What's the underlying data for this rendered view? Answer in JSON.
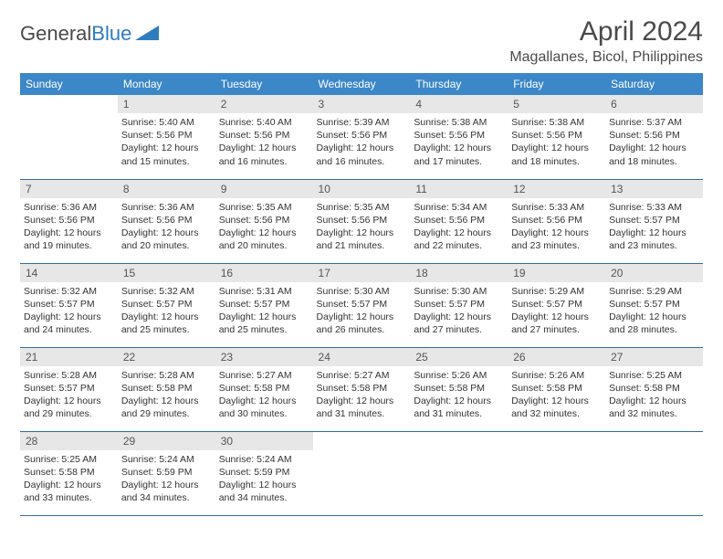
{
  "logo": {
    "text1": "General",
    "text2": "Blue",
    "shape_color": "#2e7cc0"
  },
  "title": "April 2024",
  "location": "Magallanes, Bicol, Philippines",
  "dow": [
    "Sunday",
    "Monday",
    "Tuesday",
    "Wednesday",
    "Thursday",
    "Friday",
    "Saturday"
  ],
  "colors": {
    "header_bg": "#3b87c8",
    "header_text": "#ffffff",
    "daynum_bg": "#e7e7e7",
    "row_border": "#2f6da3",
    "text": "#333333"
  },
  "typography": {
    "title_fontsize": 30,
    "location_fontsize": 16,
    "dow_fontsize": 12,
    "daynum_fontsize": 12,
    "body_fontsize": 10.5
  },
  "weeks": [
    [
      {
        "n": "",
        "empty": true
      },
      {
        "n": "1",
        "sunrise": "Sunrise: 5:40 AM",
        "sunset": "Sunset: 5:56 PM",
        "dl1": "Daylight: 12 hours",
        "dl2": "and 15 minutes."
      },
      {
        "n": "2",
        "sunrise": "Sunrise: 5:40 AM",
        "sunset": "Sunset: 5:56 PM",
        "dl1": "Daylight: 12 hours",
        "dl2": "and 16 minutes."
      },
      {
        "n": "3",
        "sunrise": "Sunrise: 5:39 AM",
        "sunset": "Sunset: 5:56 PM",
        "dl1": "Daylight: 12 hours",
        "dl2": "and 16 minutes."
      },
      {
        "n": "4",
        "sunrise": "Sunrise: 5:38 AM",
        "sunset": "Sunset: 5:56 PM",
        "dl1": "Daylight: 12 hours",
        "dl2": "and 17 minutes."
      },
      {
        "n": "5",
        "sunrise": "Sunrise: 5:38 AM",
        "sunset": "Sunset: 5:56 PM",
        "dl1": "Daylight: 12 hours",
        "dl2": "and 18 minutes."
      },
      {
        "n": "6",
        "sunrise": "Sunrise: 5:37 AM",
        "sunset": "Sunset: 5:56 PM",
        "dl1": "Daylight: 12 hours",
        "dl2": "and 18 minutes."
      }
    ],
    [
      {
        "n": "7",
        "sunrise": "Sunrise: 5:36 AM",
        "sunset": "Sunset: 5:56 PM",
        "dl1": "Daylight: 12 hours",
        "dl2": "and 19 minutes."
      },
      {
        "n": "8",
        "sunrise": "Sunrise: 5:36 AM",
        "sunset": "Sunset: 5:56 PM",
        "dl1": "Daylight: 12 hours",
        "dl2": "and 20 minutes."
      },
      {
        "n": "9",
        "sunrise": "Sunrise: 5:35 AM",
        "sunset": "Sunset: 5:56 PM",
        "dl1": "Daylight: 12 hours",
        "dl2": "and 20 minutes."
      },
      {
        "n": "10",
        "sunrise": "Sunrise: 5:35 AM",
        "sunset": "Sunset: 5:56 PM",
        "dl1": "Daylight: 12 hours",
        "dl2": "and 21 minutes."
      },
      {
        "n": "11",
        "sunrise": "Sunrise: 5:34 AM",
        "sunset": "Sunset: 5:56 PM",
        "dl1": "Daylight: 12 hours",
        "dl2": "and 22 minutes."
      },
      {
        "n": "12",
        "sunrise": "Sunrise: 5:33 AM",
        "sunset": "Sunset: 5:56 PM",
        "dl1": "Daylight: 12 hours",
        "dl2": "and 23 minutes."
      },
      {
        "n": "13",
        "sunrise": "Sunrise: 5:33 AM",
        "sunset": "Sunset: 5:57 PM",
        "dl1": "Daylight: 12 hours",
        "dl2": "and 23 minutes."
      }
    ],
    [
      {
        "n": "14",
        "sunrise": "Sunrise: 5:32 AM",
        "sunset": "Sunset: 5:57 PM",
        "dl1": "Daylight: 12 hours",
        "dl2": "and 24 minutes."
      },
      {
        "n": "15",
        "sunrise": "Sunrise: 5:32 AM",
        "sunset": "Sunset: 5:57 PM",
        "dl1": "Daylight: 12 hours",
        "dl2": "and 25 minutes."
      },
      {
        "n": "16",
        "sunrise": "Sunrise: 5:31 AM",
        "sunset": "Sunset: 5:57 PM",
        "dl1": "Daylight: 12 hours",
        "dl2": "and 25 minutes."
      },
      {
        "n": "17",
        "sunrise": "Sunrise: 5:30 AM",
        "sunset": "Sunset: 5:57 PM",
        "dl1": "Daylight: 12 hours",
        "dl2": "and 26 minutes."
      },
      {
        "n": "18",
        "sunrise": "Sunrise: 5:30 AM",
        "sunset": "Sunset: 5:57 PM",
        "dl1": "Daylight: 12 hours",
        "dl2": "and 27 minutes."
      },
      {
        "n": "19",
        "sunrise": "Sunrise: 5:29 AM",
        "sunset": "Sunset: 5:57 PM",
        "dl1": "Daylight: 12 hours",
        "dl2": "and 27 minutes."
      },
      {
        "n": "20",
        "sunrise": "Sunrise: 5:29 AM",
        "sunset": "Sunset: 5:57 PM",
        "dl1": "Daylight: 12 hours",
        "dl2": "and 28 minutes."
      }
    ],
    [
      {
        "n": "21",
        "sunrise": "Sunrise: 5:28 AM",
        "sunset": "Sunset: 5:57 PM",
        "dl1": "Daylight: 12 hours",
        "dl2": "and 29 minutes."
      },
      {
        "n": "22",
        "sunrise": "Sunrise: 5:28 AM",
        "sunset": "Sunset: 5:58 PM",
        "dl1": "Daylight: 12 hours",
        "dl2": "and 29 minutes."
      },
      {
        "n": "23",
        "sunrise": "Sunrise: 5:27 AM",
        "sunset": "Sunset: 5:58 PM",
        "dl1": "Daylight: 12 hours",
        "dl2": "and 30 minutes."
      },
      {
        "n": "24",
        "sunrise": "Sunrise: 5:27 AM",
        "sunset": "Sunset: 5:58 PM",
        "dl1": "Daylight: 12 hours",
        "dl2": "and 31 minutes."
      },
      {
        "n": "25",
        "sunrise": "Sunrise: 5:26 AM",
        "sunset": "Sunset: 5:58 PM",
        "dl1": "Daylight: 12 hours",
        "dl2": "and 31 minutes."
      },
      {
        "n": "26",
        "sunrise": "Sunrise: 5:26 AM",
        "sunset": "Sunset: 5:58 PM",
        "dl1": "Daylight: 12 hours",
        "dl2": "and 32 minutes."
      },
      {
        "n": "27",
        "sunrise": "Sunrise: 5:25 AM",
        "sunset": "Sunset: 5:58 PM",
        "dl1": "Daylight: 12 hours",
        "dl2": "and 32 minutes."
      }
    ],
    [
      {
        "n": "28",
        "sunrise": "Sunrise: 5:25 AM",
        "sunset": "Sunset: 5:58 PM",
        "dl1": "Daylight: 12 hours",
        "dl2": "and 33 minutes."
      },
      {
        "n": "29",
        "sunrise": "Sunrise: 5:24 AM",
        "sunset": "Sunset: 5:59 PM",
        "dl1": "Daylight: 12 hours",
        "dl2": "and 34 minutes."
      },
      {
        "n": "30",
        "sunrise": "Sunrise: 5:24 AM",
        "sunset": "Sunset: 5:59 PM",
        "dl1": "Daylight: 12 hours",
        "dl2": "and 34 minutes."
      },
      {
        "n": "",
        "empty": true
      },
      {
        "n": "",
        "empty": true
      },
      {
        "n": "",
        "empty": true
      },
      {
        "n": "",
        "empty": true
      }
    ]
  ]
}
